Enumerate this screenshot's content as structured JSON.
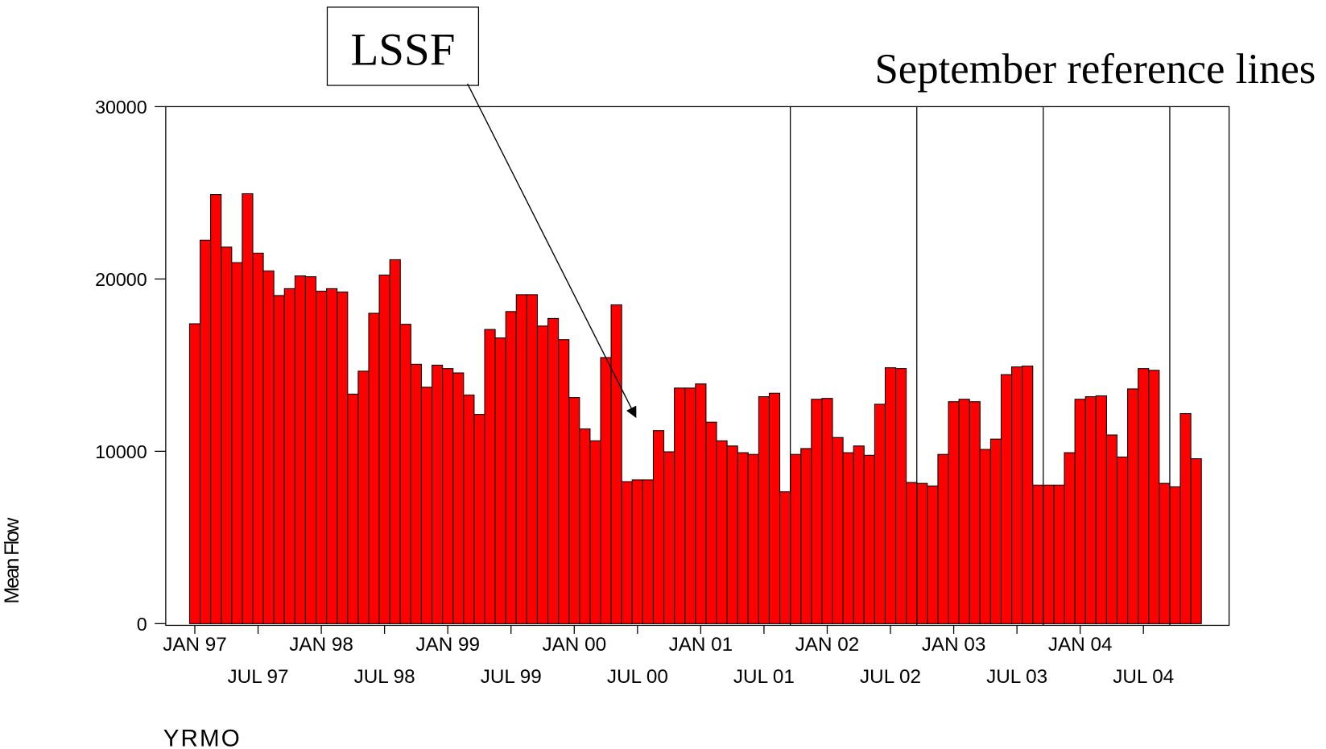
{
  "chart_data": {
    "type": "bar",
    "categories": [
      "JAN 97",
      null,
      null,
      null,
      null,
      null,
      "JUL 97",
      null,
      null,
      null,
      null,
      null,
      "JAN 98",
      null,
      null,
      null,
      null,
      null,
      "JUL 98",
      null,
      null,
      null,
      null,
      null,
      "JAN 99",
      null,
      null,
      null,
      null,
      null,
      "JUL 99",
      null,
      null,
      null,
      null,
      null,
      "JAN 00",
      null,
      null,
      null,
      null,
      null,
      "JUL 00",
      null,
      null,
      null,
      null,
      null,
      "JAN 01",
      null,
      null,
      null,
      null,
      null,
      "JUL 01",
      null,
      null,
      null,
      null,
      null,
      "JAN 02",
      null,
      null,
      null,
      null,
      null,
      "JUL 02",
      null,
      null,
      null,
      null,
      null,
      "JAN 03",
      null,
      null,
      null,
      null,
      null,
      "JUL 03",
      null,
      null,
      null,
      null,
      null,
      "JAN 04",
      null,
      null,
      null,
      null,
      null,
      "JUL 04",
      null,
      null,
      null,
      null,
      null
    ],
    "values": [
      17400,
      22250,
      24900,
      21850,
      20950,
      24950,
      21500,
      20470,
      19040,
      19440,
      20180,
      20130,
      19290,
      19440,
      19240,
      13320,
      14650,
      18010,
      20230,
      21120,
      17370,
      15050,
      13720,
      15000,
      14800,
      14550,
      13270,
      12140,
      17070,
      16580,
      18110,
      19090,
      19090,
      17270,
      17710,
      16480,
      13120,
      11300,
      10610,
      15440,
      18500,
      8240,
      8340,
      8340,
      11200,
      9970,
      13670,
      13670,
      13910,
      11690,
      10610,
      10310,
      9920,
      9820,
      13170,
      13370,
      7650,
      9820,
      10160,
      13020,
      13070,
      10800,
      9920,
      10310,
      9770,
      12730,
      14850,
      14800,
      8190,
      8140,
      7990,
      9820,
      12880,
      13020,
      12880,
      10110,
      10710,
      14450,
      14900,
      14950,
      8040,
      8040,
      8040,
      9920,
      13020,
      13170,
      13220,
      10950,
      9670,
      13620,
      14800,
      14700,
      8140,
      7940,
      12190,
      9570
    ],
    "color": "#ff0000",
    "ylabel": "Mean Flow",
    "xlabel": "YRMO",
    "ylim": [
      0,
      30000
    ],
    "yticks": [
      0,
      10000,
      20000,
      30000
    ],
    "annotations": [
      {
        "text": "LSSF"
      },
      {
        "text": "September reference lines"
      }
    ],
    "reference_lines": [
      56,
      68,
      80,
      92
    ]
  }
}
